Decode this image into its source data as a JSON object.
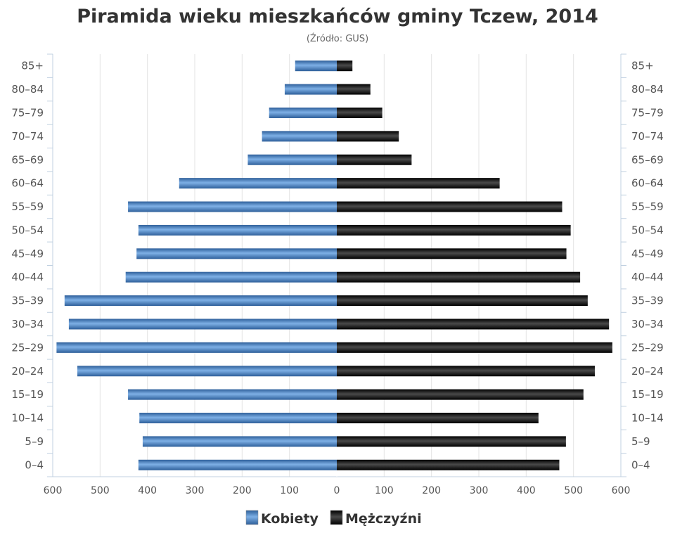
{
  "chart_data": {
    "type": "bar",
    "orientation": "horizontal-pyramid",
    "title": "Piramida wieku mieszkańców gminy Tczew, 2014",
    "subtitle": "(Źródło: GUS)",
    "categories": [
      "85+",
      "80–84",
      "75–79",
      "70–74",
      "65–69",
      "60–64",
      "55–59",
      "50–54",
      "45–49",
      "40–44",
      "35–39",
      "30–34",
      "25–29",
      "20–24",
      "15–19",
      "10–14",
      "5–9",
      "0–4"
    ],
    "series": [
      {
        "name": "Kobiety",
        "side": "left",
        "color": "#4f86c6",
        "values": [
          88,
          110,
          143,
          158,
          188,
          333,
          441,
          419,
          423,
          446,
          575,
          566,
          592,
          548,
          441,
          417,
          410,
          419
        ]
      },
      {
        "name": "Mężczyźni",
        "side": "right",
        "color": "#1a1a1a",
        "values": [
          33,
          71,
          96,
          131,
          158,
          344,
          476,
          494,
          485,
          514,
          530,
          575,
          582,
          545,
          521,
          426,
          484,
          470
        ]
      }
    ],
    "xlim": [
      -600,
      600
    ],
    "xticks": [
      "600",
      "500",
      "400",
      "300",
      "200",
      "100",
      "0",
      "100",
      "200",
      "300",
      "400",
      "500",
      "600"
    ],
    "grid": true,
    "legend_position": "bottom-center"
  }
}
